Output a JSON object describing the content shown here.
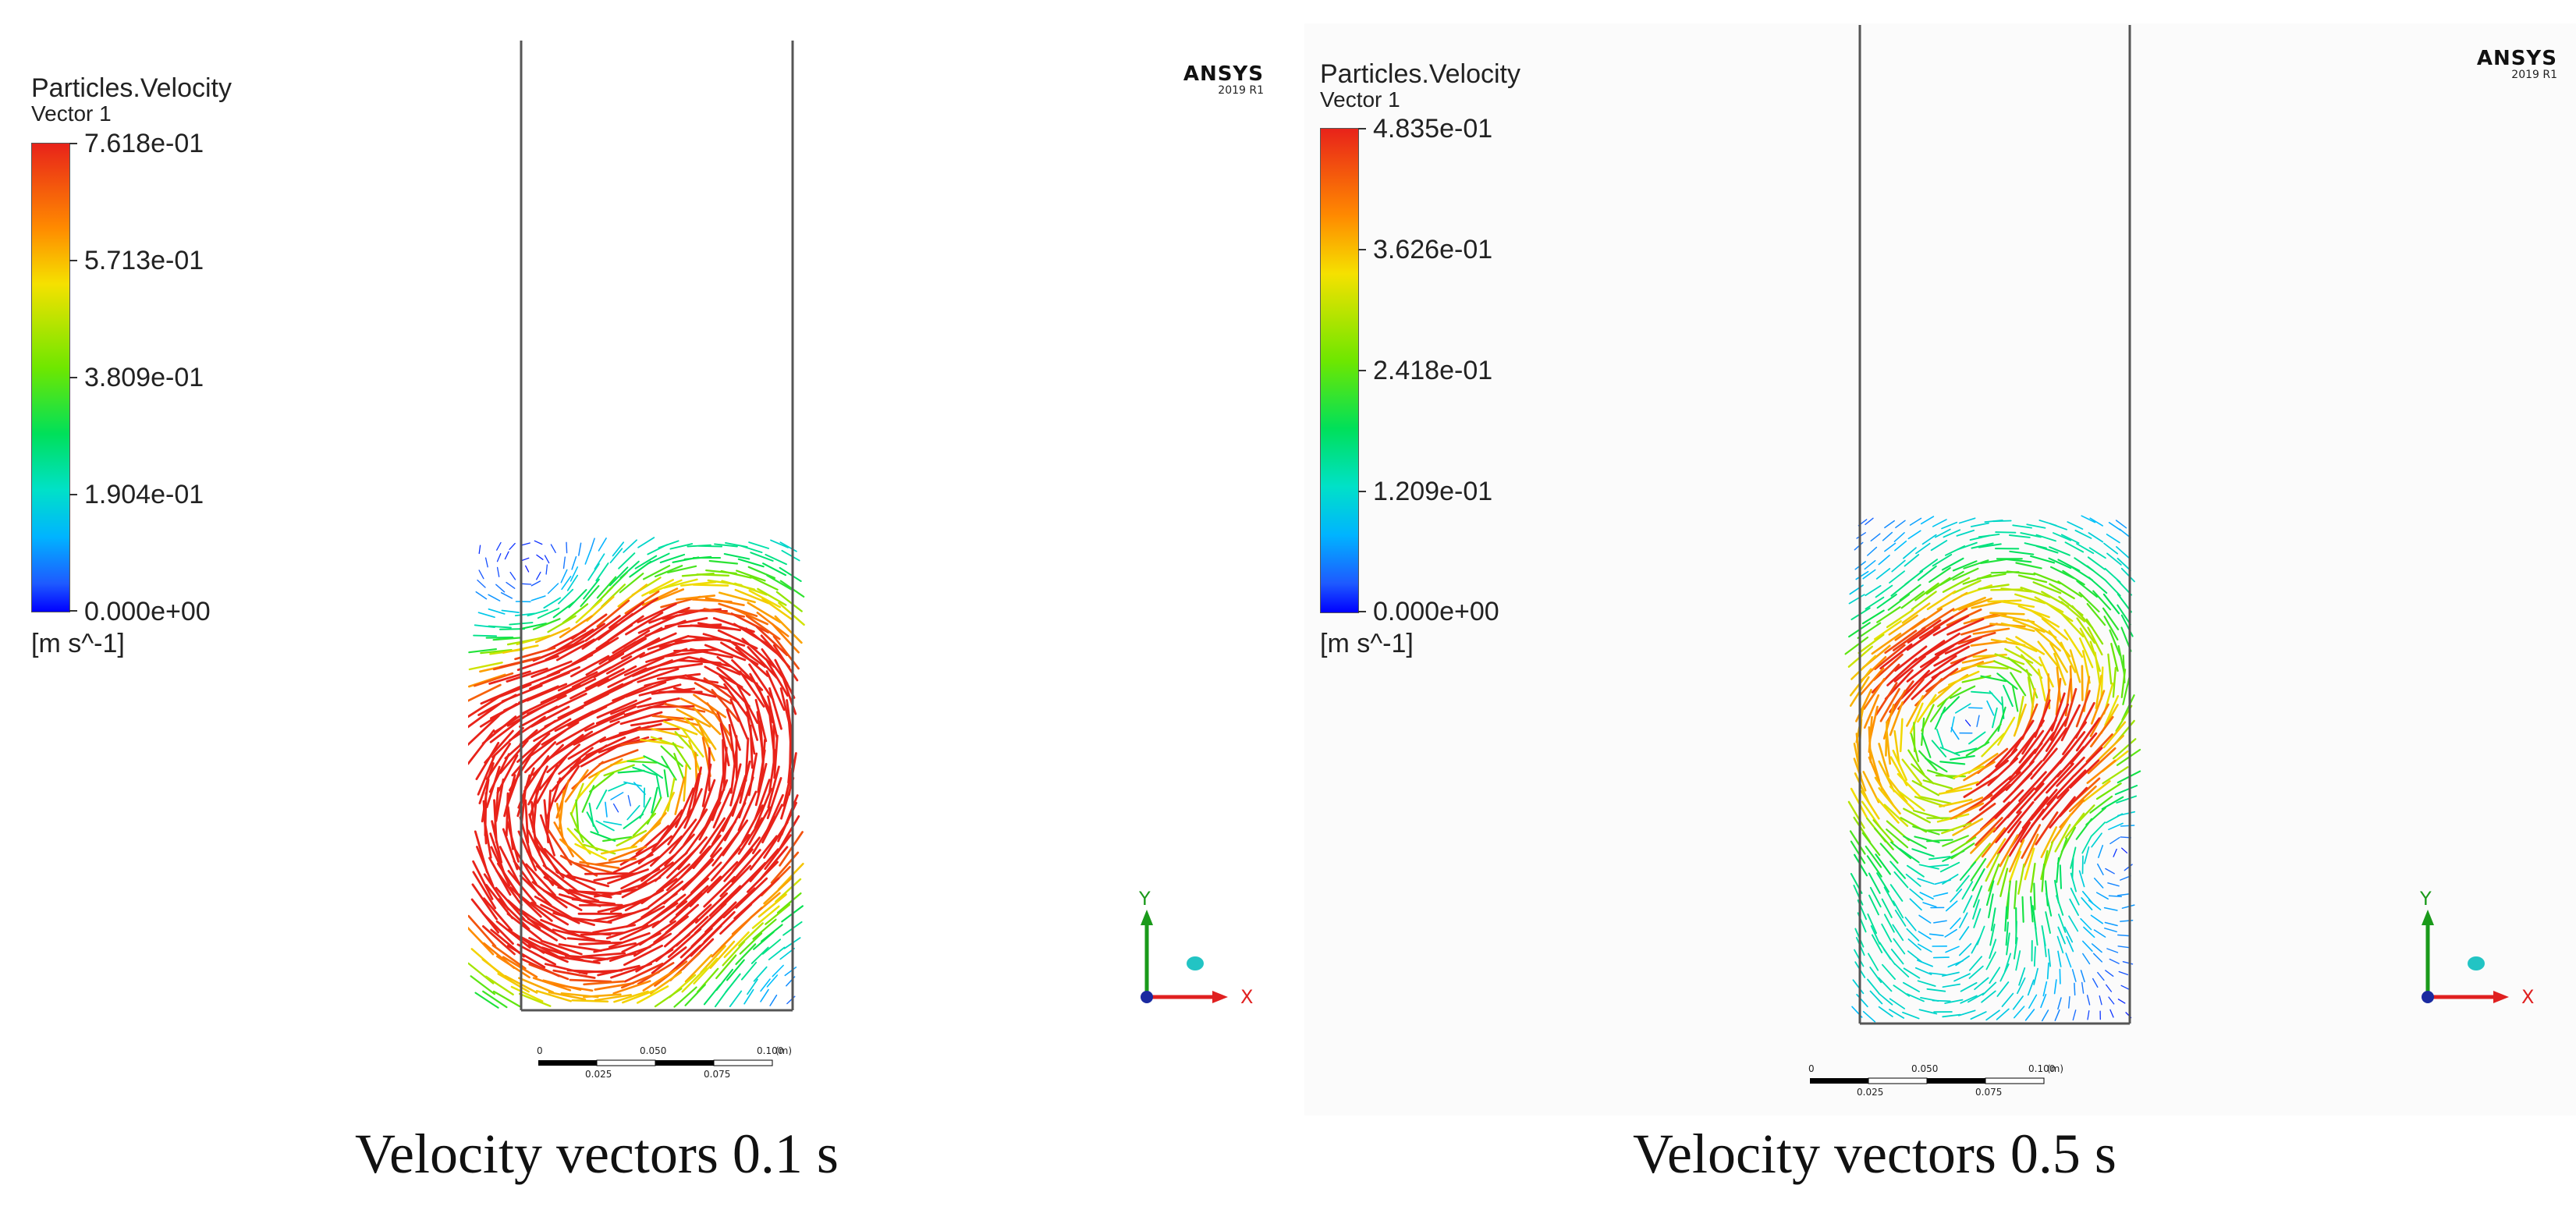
{
  "panels": [
    {
      "legend_title": "Particles.Velocity",
      "legend_sub": "Vector 1",
      "ticks": [
        "7.618e-01",
        "5.713e-01",
        "3.809e-01",
        "1.904e-01",
        "0.000e+00"
      ],
      "unit": "[m s^-1]",
      "brand": "ANSYS",
      "version": "2019 R1",
      "scale": {
        "t0": "0",
        "t1": "0.025",
        "t2": "0.050",
        "t3": "0.075",
        "t4": "0.100",
        "unit": "(m)"
      },
      "axis": {
        "x": "X",
        "y": "Y"
      },
      "caption": "Velocity vectors 0.1 s"
    },
    {
      "legend_title": "Particles.Velocity",
      "legend_sub": "Vector 1",
      "ticks": [
        "4.835e-01",
        "3.626e-01",
        "2.418e-01",
        "1.209e-01",
        "0.000e+00"
      ],
      "unit": "[m s^-1]",
      "brand": "ANSYS",
      "version": "2019 R1",
      "scale": {
        "t0": "0",
        "t1": "0.025",
        "t2": "0.050",
        "t3": "0.075",
        "t4": "0.100",
        "unit": "(m)"
      },
      "axis": {
        "x": "X",
        "y": "Y"
      },
      "caption": "Velocity vectors 0.5 s"
    }
  ],
  "colors": {
    "max": "#e8231a",
    "high": "#ff8a00",
    "mid_high": "#f5e100",
    "mid": "#00e05a",
    "low": "#00b4ff",
    "min": "#0000ff"
  }
}
